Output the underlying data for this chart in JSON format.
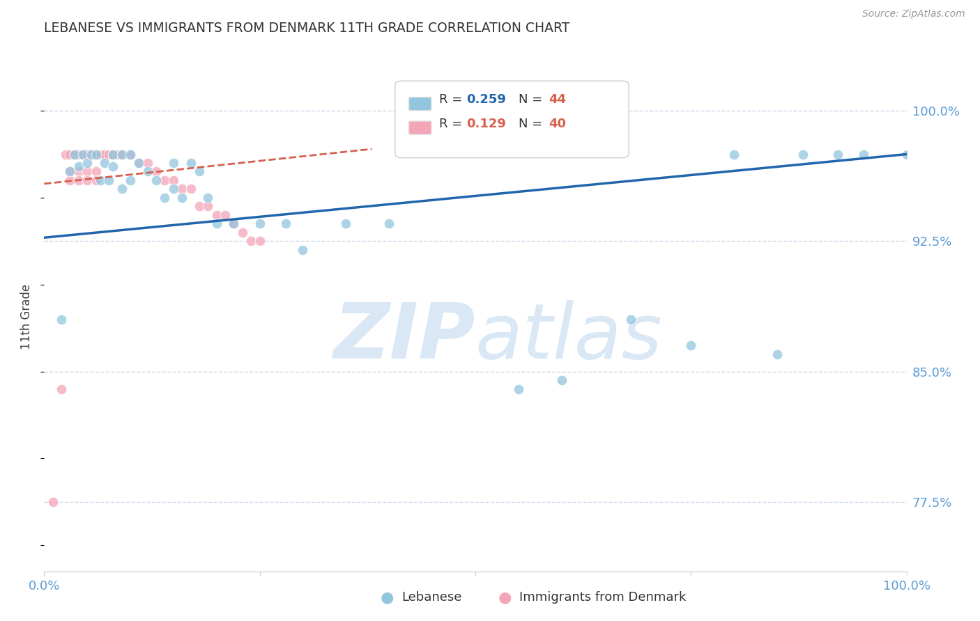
{
  "title": "LEBANESE VS IMMIGRANTS FROM DENMARK 11TH GRADE CORRELATION CHART",
  "source": "Source: ZipAtlas.com",
  "ylabel": "11th Grade",
  "ytick_labels": [
    "77.5%",
    "85.0%",
    "92.5%",
    "100.0%"
  ],
  "ytick_values": [
    0.775,
    0.85,
    0.925,
    1.0
  ],
  "xlim": [
    0.0,
    1.0
  ],
  "ylim": [
    0.735,
    1.028
  ],
  "blue_color": "#92c5de",
  "pink_color": "#f4a5b8",
  "blue_line_color": "#2166ac",
  "pink_line_color": "#d6604d",
  "axis_color": "#5b9bd5",
  "grid_color": "#c8d8e8",
  "watermark_zip_color": "#dae8f5",
  "watermark_atlas_color": "#dae8f5",
  "blue_scatter_x": [
    0.02,
    0.03,
    0.035,
    0.04,
    0.045,
    0.05,
    0.055,
    0.06,
    0.065,
    0.07,
    0.075,
    0.08,
    0.09,
    0.1,
    0.11,
    0.12,
    0.13,
    0.14,
    0.15,
    0.16,
    0.17,
    0.18,
    0.19,
    0.2,
    0.22,
    0.25,
    0.28,
    0.3,
    0.35,
    0.4,
    0.55,
    0.6,
    0.68,
    0.75,
    0.8,
    0.85,
    0.88,
    0.92,
    0.95,
    1.0,
    0.08,
    0.09,
    0.1,
    0.15
  ],
  "blue_scatter_y": [
    0.88,
    0.965,
    0.975,
    0.968,
    0.975,
    0.97,
    0.975,
    0.975,
    0.96,
    0.97,
    0.96,
    0.968,
    0.955,
    0.96,
    0.97,
    0.965,
    0.96,
    0.95,
    0.955,
    0.95,
    0.97,
    0.965,
    0.95,
    0.935,
    0.935,
    0.935,
    0.935,
    0.92,
    0.935,
    0.935,
    0.84,
    0.845,
    0.88,
    0.865,
    0.975,
    0.86,
    0.975,
    0.975,
    0.975,
    0.975,
    0.975,
    0.975,
    0.975,
    0.97
  ],
  "pink_scatter_x": [
    0.01,
    0.02,
    0.025,
    0.03,
    0.035,
    0.04,
    0.045,
    0.05,
    0.055,
    0.06,
    0.065,
    0.07,
    0.075,
    0.08,
    0.085,
    0.09,
    0.1,
    0.11,
    0.12,
    0.13,
    0.14,
    0.15,
    0.16,
    0.17,
    0.18,
    0.19,
    0.2,
    0.21,
    0.22,
    0.23,
    0.24,
    0.25,
    0.03,
    0.03,
    0.04,
    0.04,
    0.05,
    0.05,
    0.06,
    0.06
  ],
  "pink_scatter_y": [
    0.775,
    0.84,
    0.975,
    0.975,
    0.975,
    0.975,
    0.975,
    0.975,
    0.975,
    0.975,
    0.975,
    0.975,
    0.975,
    0.975,
    0.975,
    0.975,
    0.975,
    0.97,
    0.97,
    0.965,
    0.96,
    0.96,
    0.955,
    0.955,
    0.945,
    0.945,
    0.94,
    0.94,
    0.935,
    0.93,
    0.925,
    0.925,
    0.965,
    0.96,
    0.965,
    0.96,
    0.965,
    0.96,
    0.965,
    0.96
  ],
  "blue_trend_x": [
    0.0,
    1.0
  ],
  "blue_trend_y": [
    0.927,
    0.975
  ],
  "pink_trend_x": [
    0.0,
    0.38
  ],
  "pink_trend_y": [
    0.958,
    0.978
  ],
  "legend_r1_val": "0.259",
  "legend_n1_val": "44",
  "legend_r2_val": "0.129",
  "legend_n2_val": "40"
}
